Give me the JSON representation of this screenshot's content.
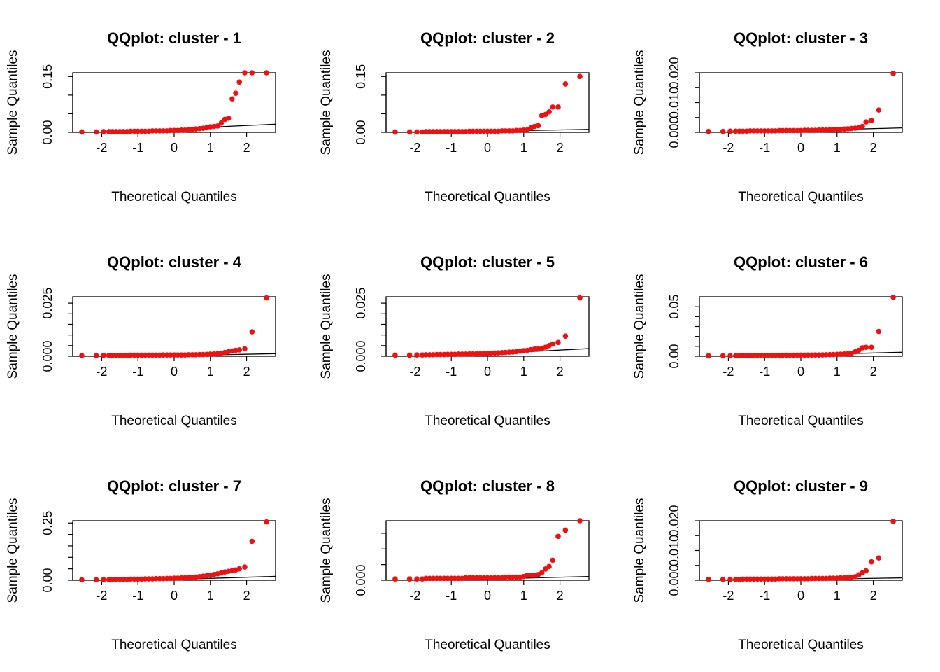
{
  "figure": {
    "background": "#ffffff",
    "point_color": "#ee1111",
    "line_color": "#000000",
    "layout": "3x3 grid"
  },
  "chart_data": [
    {
      "type": "scatter",
      "title": "QQplot: cluster - 1",
      "xlabel": "Theoretical Quantiles",
      "ylabel": "Sample Quantiles",
      "xlim": [
        -2.8,
        2.8
      ],
      "ylim": [
        0,
        0.16
      ],
      "xticks": [
        -2,
        -1,
        0,
        1,
        2
      ],
      "yticks": [
        0,
        0.05,
        0.1,
        0.15
      ],
      "ytick_labels": [
        "0.00",
        "",
        "",
        "0.15"
      ],
      "x": [
        -2.55,
        -2.15,
        -1.95,
        -1.8,
        -1.7,
        -1.6,
        -1.5,
        -1.4,
        -1.3,
        -1.2,
        -1.1,
        -1.0,
        -0.9,
        -0.8,
        -0.7,
        -0.6,
        -0.5,
        -0.4,
        -0.3,
        -0.2,
        -0.1,
        0.0,
        0.1,
        0.2,
        0.3,
        0.4,
        0.5,
        0.6,
        0.7,
        0.8,
        0.9,
        1.0,
        1.1,
        1.2,
        1.3,
        1.4,
        1.5,
        1.6,
        1.7,
        1.8,
        1.95,
        2.15,
        2.55
      ],
      "y": [
        0.001,
        0.001,
        0.002,
        0.002,
        0.002,
        0.002,
        0.002,
        0.002,
        0.002,
        0.003,
        0.003,
        0.003,
        0.003,
        0.003,
        0.003,
        0.004,
        0.004,
        0.004,
        0.004,
        0.004,
        0.005,
        0.005,
        0.005,
        0.006,
        0.006,
        0.007,
        0.008,
        0.009,
        0.01,
        0.011,
        0.013,
        0.015,
        0.016,
        0.017,
        0.025,
        0.035,
        0.038,
        0.09,
        0.105,
        0.135,
        0.16,
        0.16,
        0.16
      ],
      "ref_line": {
        "x": [
          -2.8,
          2.8
        ],
        "y": [
          -0.003,
          0.022
        ]
      }
    },
    {
      "type": "scatter",
      "title": "QQplot: cluster - 2",
      "xlabel": "Theoretical Quantiles",
      "ylabel": "Sample Quantiles",
      "xlim": [
        -2.8,
        2.8
      ],
      "ylim": [
        0,
        0.16
      ],
      "xticks": [
        -2,
        -1,
        0,
        1,
        2
      ],
      "yticks": [
        0,
        0.05,
        0.1,
        0.15
      ],
      "ytick_labels": [
        "0.00",
        "",
        "",
        "0.15"
      ],
      "x": [
        -2.55,
        -2.15,
        -1.95,
        -1.8,
        -1.7,
        -1.6,
        -1.5,
        -1.4,
        -1.3,
        -1.2,
        -1.1,
        -1.0,
        -0.9,
        -0.8,
        -0.7,
        -0.6,
        -0.5,
        -0.4,
        -0.3,
        -0.2,
        -0.1,
        0.0,
        0.1,
        0.2,
        0.3,
        0.4,
        0.5,
        0.6,
        0.7,
        0.8,
        0.9,
        1.0,
        1.1,
        1.2,
        1.3,
        1.4,
        1.5,
        1.6,
        1.7,
        1.8,
        1.95,
        2.15,
        2.55
      ],
      "y": [
        0.001,
        0.001,
        0.001,
        0.001,
        0.002,
        0.002,
        0.002,
        0.002,
        0.002,
        0.002,
        0.002,
        0.002,
        0.002,
        0.002,
        0.002,
        0.002,
        0.003,
        0.003,
        0.003,
        0.003,
        0.003,
        0.003,
        0.003,
        0.003,
        0.003,
        0.004,
        0.004,
        0.004,
        0.004,
        0.005,
        0.005,
        0.006,
        0.007,
        0.012,
        0.016,
        0.018,
        0.045,
        0.048,
        0.055,
        0.068,
        0.068,
        0.13,
        0.15
      ],
      "ref_line": {
        "x": [
          -2.8,
          2.8
        ],
        "y": [
          -0.002,
          0.008
        ]
      }
    },
    {
      "type": "scatter",
      "title": "QQplot: cluster - 3",
      "xlabel": "Theoretical Quantiles",
      "ylabel": "Sample Quantiles",
      "xlim": [
        -2.8,
        2.8
      ],
      "ylim": [
        0,
        0.02
      ],
      "xticks": [
        -2,
        -1,
        0,
        1,
        2
      ],
      "yticks": [
        0,
        0.005,
        0.01,
        0.015,
        0.02
      ],
      "ytick_labels": [
        "0.000",
        "",
        "0.010",
        "",
        "0.020"
      ],
      "x": [
        -2.55,
        -2.15,
        -1.95,
        -1.8,
        -1.7,
        -1.6,
        -1.5,
        -1.4,
        -1.3,
        -1.2,
        -1.1,
        -1.0,
        -0.9,
        -0.8,
        -0.7,
        -0.6,
        -0.5,
        -0.4,
        -0.3,
        -0.2,
        -0.1,
        0.0,
        0.1,
        0.2,
        0.3,
        0.4,
        0.5,
        0.6,
        0.7,
        0.8,
        0.9,
        1.0,
        1.1,
        1.2,
        1.3,
        1.4,
        1.5,
        1.6,
        1.7,
        1.8,
        1.95,
        2.15,
        2.55
      ],
      "y": [
        0.0003,
        0.0003,
        0.0004,
        0.0004,
        0.0004,
        0.0004,
        0.0004,
        0.0005,
        0.0005,
        0.0005,
        0.0005,
        0.0005,
        0.0005,
        0.0005,
        0.0005,
        0.0006,
        0.0006,
        0.0006,
        0.0006,
        0.0006,
        0.0006,
        0.0006,
        0.0007,
        0.0007,
        0.0007,
        0.0007,
        0.0008,
        0.0008,
        0.0008,
        0.0009,
        0.0009,
        0.001,
        0.001,
        0.0011,
        0.0012,
        0.0013,
        0.0014,
        0.0016,
        0.002,
        0.0035,
        0.004,
        0.0075,
        0.0198
      ],
      "ref_line": {
        "x": [
          -2.8,
          2.8
        ],
        "y": [
          -0.0002,
          0.0015
        ]
      }
    },
    {
      "type": "scatter",
      "title": "QQplot: cluster - 4",
      "xlabel": "Theoretical Quantiles",
      "ylabel": "Sample Quantiles",
      "xlim": [
        -2.8,
        2.8
      ],
      "ylim": [
        0,
        0.028
      ],
      "xticks": [
        -2,
        -1,
        0,
        1,
        2
      ],
      "yticks": [
        0,
        0.005,
        0.01,
        0.015,
        0.02,
        0.025
      ],
      "ytick_labels": [
        "0.000",
        "",
        "",
        "",
        "",
        "0.025"
      ],
      "x": [
        -2.55,
        -2.15,
        -1.95,
        -1.8,
        -1.7,
        -1.6,
        -1.5,
        -1.4,
        -1.3,
        -1.2,
        -1.1,
        -1.0,
        -0.9,
        -0.8,
        -0.7,
        -0.6,
        -0.5,
        -0.4,
        -0.3,
        -0.2,
        -0.1,
        0.0,
        0.1,
        0.2,
        0.3,
        0.4,
        0.5,
        0.6,
        0.7,
        0.8,
        0.9,
        1.0,
        1.1,
        1.2,
        1.3,
        1.4,
        1.5,
        1.6,
        1.7,
        1.8,
        1.95,
        2.15,
        2.55
      ],
      "y": [
        0.0003,
        0.0003,
        0.0004,
        0.0004,
        0.0004,
        0.0004,
        0.0004,
        0.0004,
        0.0004,
        0.0005,
        0.0005,
        0.0005,
        0.0005,
        0.0005,
        0.0005,
        0.0005,
        0.0005,
        0.0005,
        0.0006,
        0.0006,
        0.0006,
        0.0006,
        0.0006,
        0.0006,
        0.0006,
        0.0007,
        0.0007,
        0.0007,
        0.0008,
        0.0008,
        0.0009,
        0.001,
        0.0011,
        0.0012,
        0.0014,
        0.0018,
        0.0022,
        0.0025,
        0.0028,
        0.003,
        0.0035,
        0.0115,
        0.0275
      ],
      "ref_line": {
        "x": [
          -2.8,
          2.8
        ],
        "y": [
          -0.0006,
          0.0012
        ]
      }
    },
    {
      "type": "scatter",
      "title": "QQplot: cluster - 5",
      "xlabel": "Theoretical Quantiles",
      "ylabel": "Sample Quantiles",
      "xlim": [
        -2.8,
        2.8
      ],
      "ylim": [
        0,
        0.028
      ],
      "xticks": [
        -2,
        -1,
        0,
        1,
        2
      ],
      "yticks": [
        0,
        0.005,
        0.01,
        0.015,
        0.02,
        0.025
      ],
      "ytick_labels": [
        "0.000",
        "",
        "",
        "",
        "",
        "0.025"
      ],
      "x": [
        -2.55,
        -2.15,
        -1.95,
        -1.8,
        -1.7,
        -1.6,
        -1.5,
        -1.4,
        -1.3,
        -1.2,
        -1.1,
        -1.0,
        -0.9,
        -0.8,
        -0.7,
        -0.6,
        -0.5,
        -0.4,
        -0.3,
        -0.2,
        -0.1,
        0.0,
        0.1,
        0.2,
        0.3,
        0.4,
        0.5,
        0.6,
        0.7,
        0.8,
        0.9,
        1.0,
        1.1,
        1.2,
        1.3,
        1.4,
        1.5,
        1.6,
        1.7,
        1.8,
        1.95,
        2.15,
        2.55
      ],
      "y": [
        0.0005,
        0.0005,
        0.0006,
        0.0006,
        0.0007,
        0.0007,
        0.0007,
        0.0008,
        0.0008,
        0.0008,
        0.0009,
        0.0009,
        0.0009,
        0.001,
        0.001,
        0.001,
        0.0011,
        0.0011,
        0.0012,
        0.0012,
        0.0013,
        0.0013,
        0.0014,
        0.0015,
        0.0016,
        0.0017,
        0.0018,
        0.0019,
        0.002,
        0.0022,
        0.0024,
        0.0026,
        0.0028,
        0.0031,
        0.0034,
        0.0035,
        0.0036,
        0.0042,
        0.005,
        0.0058,
        0.0065,
        0.0095,
        0.0275
      ],
      "ref_line": {
        "x": [
          -2.8,
          2.8
        ],
        "y": [
          -0.0012,
          0.0036
        ]
      }
    },
    {
      "type": "scatter",
      "title": "QQplot: cluster - 6",
      "xlabel": "Theoretical Quantiles",
      "ylabel": "Sample Quantiles",
      "xlim": [
        -2.8,
        2.8
      ],
      "ylim": [
        0,
        0.06
      ],
      "xticks": [
        -2,
        -1,
        0,
        1,
        2
      ],
      "yticks": [
        0,
        0.01,
        0.02,
        0.03,
        0.04,
        0.05
      ],
      "ytick_labels": [
        "0.00",
        "",
        "",
        "",
        "",
        "0.05"
      ],
      "x": [
        -2.55,
        -2.15,
        -1.95,
        -1.8,
        -1.7,
        -1.6,
        -1.5,
        -1.4,
        -1.3,
        -1.2,
        -1.1,
        -1.0,
        -0.9,
        -0.8,
        -0.7,
        -0.6,
        -0.5,
        -0.4,
        -0.3,
        -0.2,
        -0.1,
        0.0,
        0.1,
        0.2,
        0.3,
        0.4,
        0.5,
        0.6,
        0.7,
        0.8,
        0.9,
        1.0,
        1.1,
        1.2,
        1.3,
        1.4,
        1.5,
        1.6,
        1.7,
        1.8,
        1.95,
        2.15,
        2.55
      ],
      "y": [
        0.0005,
        0.0005,
        0.0006,
        0.0006,
        0.0006,
        0.0007,
        0.0007,
        0.0007,
        0.0007,
        0.0008,
        0.0008,
        0.0008,
        0.0008,
        0.0009,
        0.0009,
        0.0009,
        0.001,
        0.001,
        0.001,
        0.001,
        0.0011,
        0.0011,
        0.0011,
        0.0012,
        0.0012,
        0.0013,
        0.0013,
        0.0014,
        0.0015,
        0.0016,
        0.0017,
        0.0019,
        0.0021,
        0.0023,
        0.0026,
        0.003,
        0.0045,
        0.006,
        0.0085,
        0.009,
        0.009,
        0.025,
        0.0595
      ],
      "ref_line": {
        "x": [
          -2.8,
          2.8
        ],
        "y": [
          -0.001,
          0.004
        ]
      }
    },
    {
      "type": "scatter",
      "title": "QQplot: cluster - 7",
      "xlabel": "Theoretical Quantiles",
      "ylabel": "Sample Quantiles",
      "xlim": [
        -2.8,
        2.8
      ],
      "ylim": [
        0,
        0.26
      ],
      "xticks": [
        -2,
        -1,
        0,
        1,
        2
      ],
      "yticks": [
        0,
        0.05,
        0.1,
        0.15,
        0.2,
        0.25
      ],
      "ytick_labels": [
        "0.00",
        "",
        "",
        "",
        "",
        "0.25"
      ],
      "x": [
        -2.55,
        -2.15,
        -1.95,
        -1.8,
        -1.7,
        -1.6,
        -1.5,
        -1.4,
        -1.3,
        -1.2,
        -1.1,
        -1.0,
        -0.9,
        -0.8,
        -0.7,
        -0.6,
        -0.5,
        -0.4,
        -0.3,
        -0.2,
        -0.1,
        0.0,
        0.1,
        0.2,
        0.3,
        0.4,
        0.5,
        0.6,
        0.7,
        0.8,
        0.9,
        1.0,
        1.1,
        1.2,
        1.3,
        1.4,
        1.5,
        1.6,
        1.7,
        1.8,
        1.95,
        2.15,
        2.55
      ],
      "y": [
        0.002,
        0.002,
        0.003,
        0.003,
        0.003,
        0.004,
        0.004,
        0.004,
        0.004,
        0.005,
        0.005,
        0.005,
        0.005,
        0.006,
        0.006,
        0.006,
        0.007,
        0.007,
        0.007,
        0.008,
        0.008,
        0.009,
        0.009,
        0.01,
        0.011,
        0.012,
        0.013,
        0.014,
        0.016,
        0.018,
        0.02,
        0.022,
        0.025,
        0.028,
        0.032,
        0.036,
        0.039,
        0.042,
        0.045,
        0.05,
        0.058,
        0.17,
        0.255
      ],
      "ref_line": {
        "x": [
          -2.8,
          2.8
        ],
        "y": [
          -0.01,
          0.017
        ]
      }
    },
    {
      "type": "scatter",
      "title": "QQplot: cluster - 8",
      "xlabel": "Theoretical Quantiles",
      "ylabel": "Sample Quantiles",
      "xlim": [
        -2.8,
        2.8
      ],
      "ylim": [
        0,
        0.0095
      ],
      "xticks": [
        -2,
        -1,
        0,
        1,
        2
      ],
      "yticks": [
        0,
        0.0025,
        0.005,
        0.0075
      ],
      "ytick_labels": [
        "0.000",
        "",
        "",
        ""
      ],
      "x": [
        -2.55,
        -2.15,
        -1.95,
        -1.8,
        -1.7,
        -1.6,
        -1.5,
        -1.4,
        -1.3,
        -1.2,
        -1.1,
        -1.0,
        -0.9,
        -0.8,
        -0.7,
        -0.6,
        -0.5,
        -0.4,
        -0.3,
        -0.2,
        -0.1,
        0.0,
        0.1,
        0.2,
        0.3,
        0.4,
        0.5,
        0.6,
        0.7,
        0.8,
        0.9,
        1.0,
        1.1,
        1.2,
        1.3,
        1.4,
        1.5,
        1.6,
        1.7,
        1.8,
        1.95,
        2.15,
        2.55
      ],
      "y": [
        0.0002,
        0.0002,
        0.0002,
        0.0002,
        0.0003,
        0.0003,
        0.0003,
        0.0003,
        0.0003,
        0.0003,
        0.0003,
        0.0003,
        0.0003,
        0.0003,
        0.0003,
        0.0004,
        0.0004,
        0.0004,
        0.0004,
        0.0004,
        0.0004,
        0.0004,
        0.0004,
        0.0004,
        0.0004,
        0.0004,
        0.0005,
        0.0005,
        0.0005,
        0.0005,
        0.0005,
        0.0006,
        0.0008,
        0.0008,
        0.0008,
        0.0009,
        0.0012,
        0.0018,
        0.0022,
        0.0032,
        0.007,
        0.008,
        0.0095
      ],
      "ref_line": {
        "x": [
          -2.8,
          2.8
        ],
        "y": [
          -0.0002,
          0.0006
        ]
      }
    },
    {
      "type": "scatter",
      "title": "QQplot: cluster - 9",
      "xlabel": "Theoretical Quantiles",
      "ylabel": "Sample Quantiles",
      "xlim": [
        -2.8,
        2.8
      ],
      "ylim": [
        0,
        0.02
      ],
      "xticks": [
        -2,
        -1,
        0,
        1,
        2
      ],
      "yticks": [
        0,
        0.005,
        0.01,
        0.015,
        0.02
      ],
      "ytick_labels": [
        "0.000",
        "",
        "0.010",
        "",
        "0.020"
      ],
      "x": [
        -2.55,
        -2.15,
        -1.95,
        -1.8,
        -1.7,
        -1.6,
        -1.5,
        -1.4,
        -1.3,
        -1.2,
        -1.1,
        -1.0,
        -0.9,
        -0.8,
        -0.7,
        -0.6,
        -0.5,
        -0.4,
        -0.3,
        -0.2,
        -0.1,
        0.0,
        0.1,
        0.2,
        0.3,
        0.4,
        0.5,
        0.6,
        0.7,
        0.8,
        0.9,
        1.0,
        1.1,
        1.2,
        1.3,
        1.4,
        1.5,
        1.6,
        1.7,
        1.8,
        1.95,
        2.15,
        2.55
      ],
      "y": [
        0.0003,
        0.0003,
        0.0003,
        0.0003,
        0.0003,
        0.0004,
        0.0004,
        0.0004,
        0.0004,
        0.0004,
        0.0004,
        0.0004,
        0.0004,
        0.0004,
        0.0004,
        0.0005,
        0.0005,
        0.0005,
        0.0005,
        0.0005,
        0.0005,
        0.0005,
        0.0005,
        0.0005,
        0.0006,
        0.0006,
        0.0006,
        0.0006,
        0.0006,
        0.0007,
        0.0007,
        0.0007,
        0.0008,
        0.0008,
        0.0009,
        0.001,
        0.0012,
        0.0018,
        0.0025,
        0.0032,
        0.0062,
        0.0075,
        0.0198
      ],
      "ref_line": {
        "x": [
          -2.8,
          2.8
        ],
        "y": [
          -0.0003,
          0.0008
        ]
      }
    }
  ]
}
